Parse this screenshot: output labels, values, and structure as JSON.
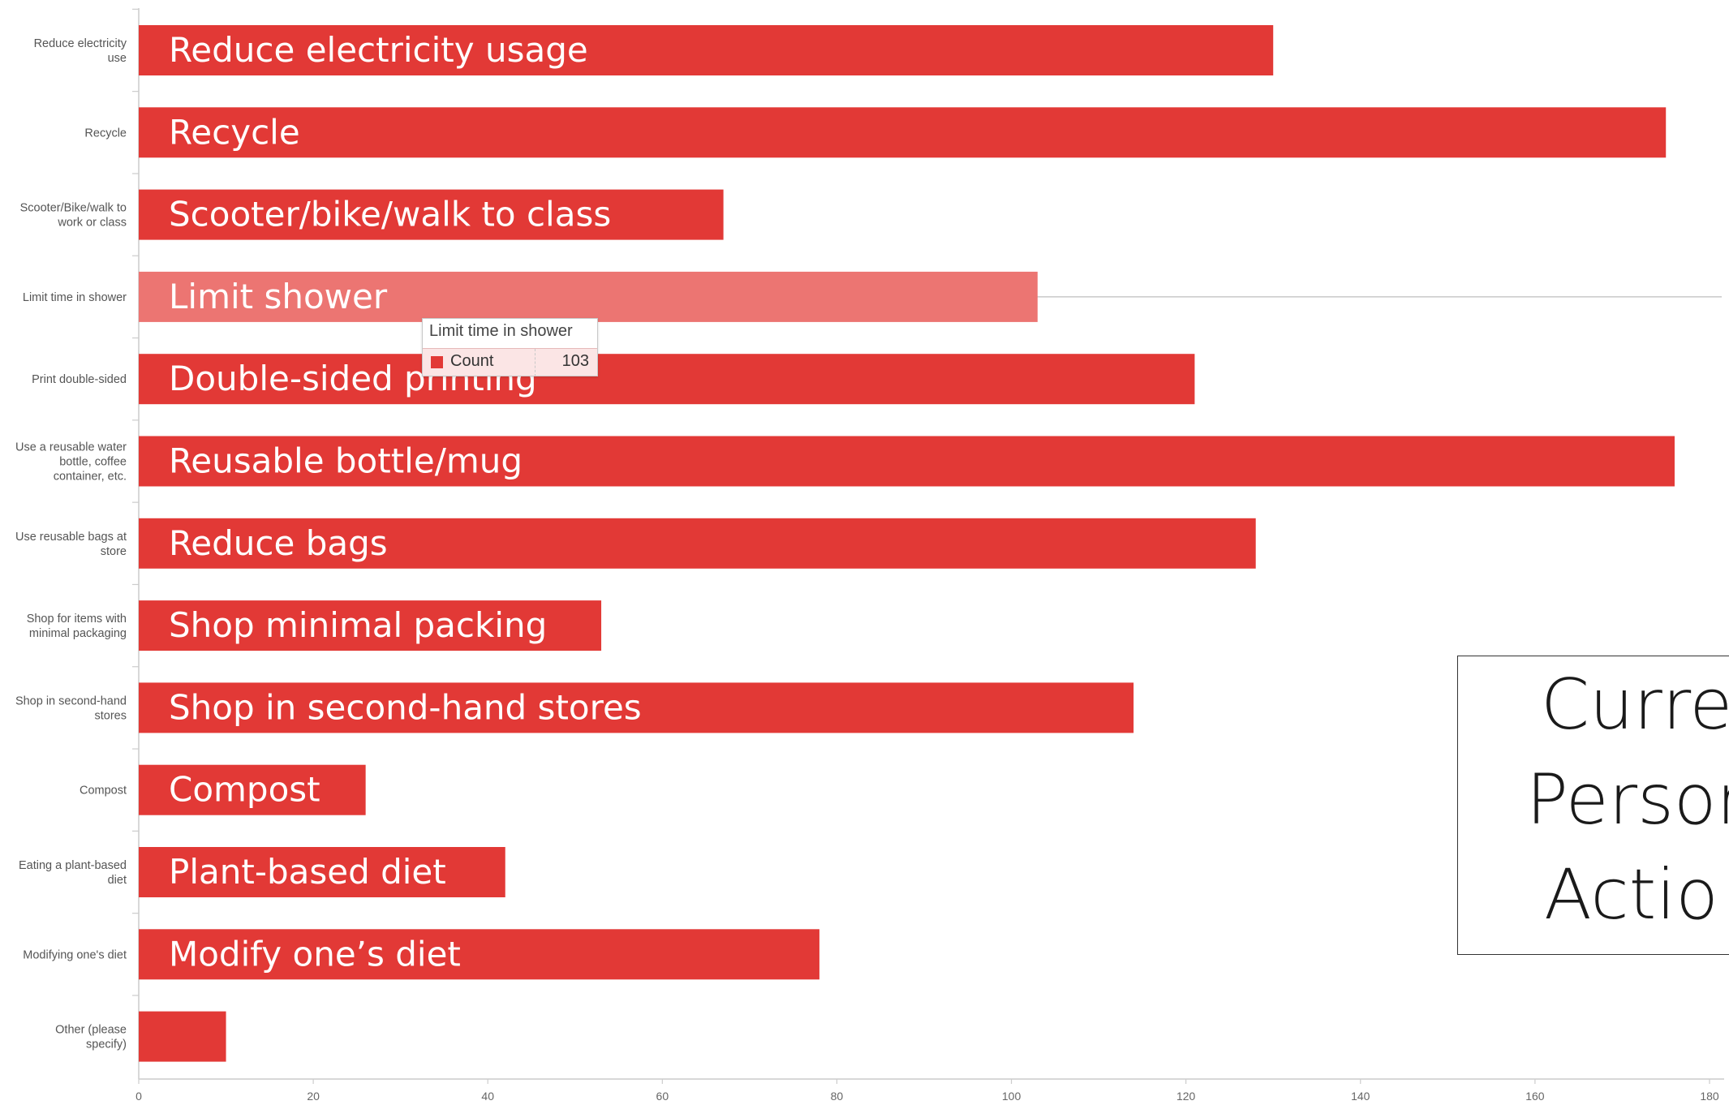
{
  "title_box": {
    "lines": [
      "Curre",
      "Persor",
      "Actio"
    ]
  },
  "tooltip": {
    "title": "Limit time in shower",
    "series": "Count",
    "value": "103"
  },
  "colors": {
    "bar": "#e23936",
    "bar_highlight": "#ec7572",
    "axis": "#cccccc"
  },
  "chart_data": {
    "type": "bar",
    "orientation": "horizontal",
    "categories": [
      [
        "Reduce electricity",
        "use"
      ],
      [
        "Recycle"
      ],
      [
        "Scooter/Bike/walk to",
        "work or class"
      ],
      [
        "Limit time in shower"
      ],
      [
        "Print double-sided"
      ],
      [
        "Use a reusable water",
        "bottle, coffee",
        "container, etc."
      ],
      [
        "Use reusable bags at",
        "store"
      ],
      [
        "Shop for items with",
        "minimal packaging"
      ],
      [
        "Shop in second-hand",
        "stores"
      ],
      [
        "Compost"
      ],
      [
        "Eating a plant-based",
        "diet"
      ],
      [
        "Modifying one's diet"
      ],
      [
        "Other (please",
        "specify)"
      ]
    ],
    "bar_labels": [
      "Reduce electricity usage",
      "Recycle",
      "Scooter/bike/walk to class",
      "Limit shower",
      "Double-sided printing",
      "Reusable bottle/mug",
      "Reduce bags",
      "Shop minimal packing",
      "Shop in second-hand stores",
      "Compost",
      "Plant-based diet",
      "Modify one’s diet",
      ""
    ],
    "series": [
      {
        "name": "Count",
        "values": [
          130,
          175,
          67,
          103,
          121,
          176,
          128,
          53,
          114,
          26,
          42,
          78,
          10
        ]
      }
    ],
    "highlighted_index": 3,
    "xlim": [
      0,
      180
    ],
    "xticks": [
      "0",
      "20",
      "40",
      "60",
      "80",
      "100",
      "120",
      "140",
      "160",
      "180"
    ],
    "grid": false,
    "legend": "none"
  }
}
